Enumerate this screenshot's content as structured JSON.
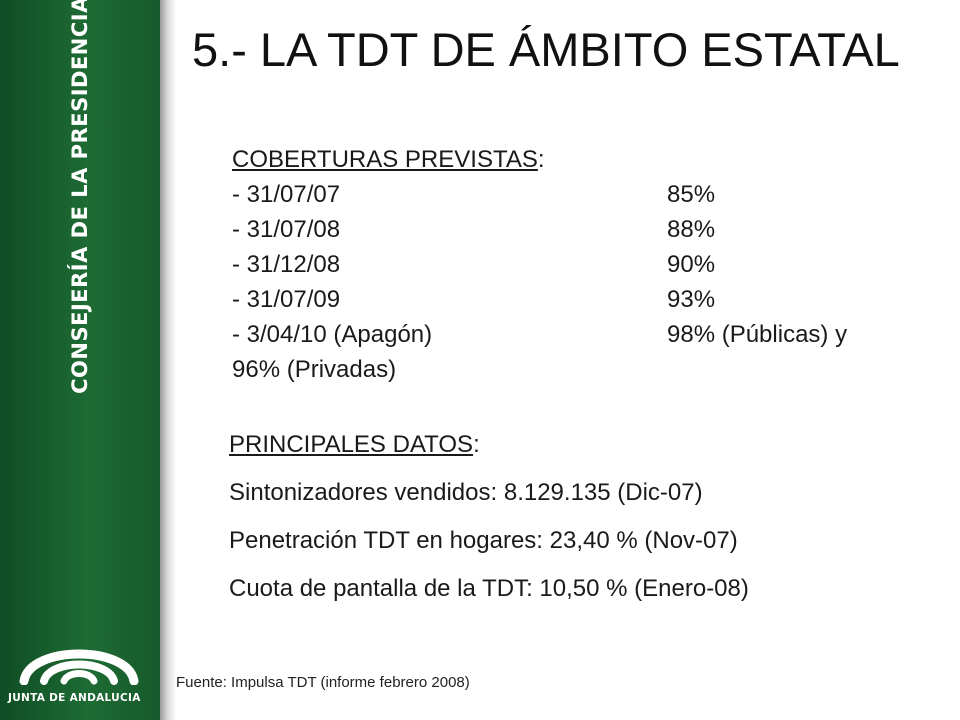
{
  "sidebar": {
    "vertical_label": "CONSEJERÍA DE LA PRESIDENCIA",
    "logo_text": "JUNTA DE ANDALUCIA",
    "color": "#1e6b34"
  },
  "title": "5.- LA TDT DE ÁMBITO ESTATAL",
  "coverage": {
    "heading": "COBERTURAS PREVISTAS",
    "heading_suffix": ":",
    "items": [
      {
        "date": "- 31/07/07",
        "value": "85%"
      },
      {
        "date": "- 31/07/08",
        "value": "88%"
      },
      {
        "date": "- 31/12/08",
        "value": "90%"
      },
      {
        "date": "- 31/07/09",
        "value": "93%"
      },
      {
        "date": "- 3/04/10 (Apagón)",
        "value": "98% (Públicas) y"
      }
    ],
    "continuation": "96% (Privadas)"
  },
  "main_data": {
    "heading": "PRINCIPALES DATOS",
    "heading_suffix": ":",
    "lines": [
      "Sintonizadores vendidos: 8.129.135 (Dic-07)",
      "Penetración TDT en hogares: 23,40 % (Nov-07)",
      "Cuota de pantalla de la TDT: 10,50 % (Enero-08)"
    ]
  },
  "source": "Fuente: Impulsa TDT (informe febrero 2008)"
}
